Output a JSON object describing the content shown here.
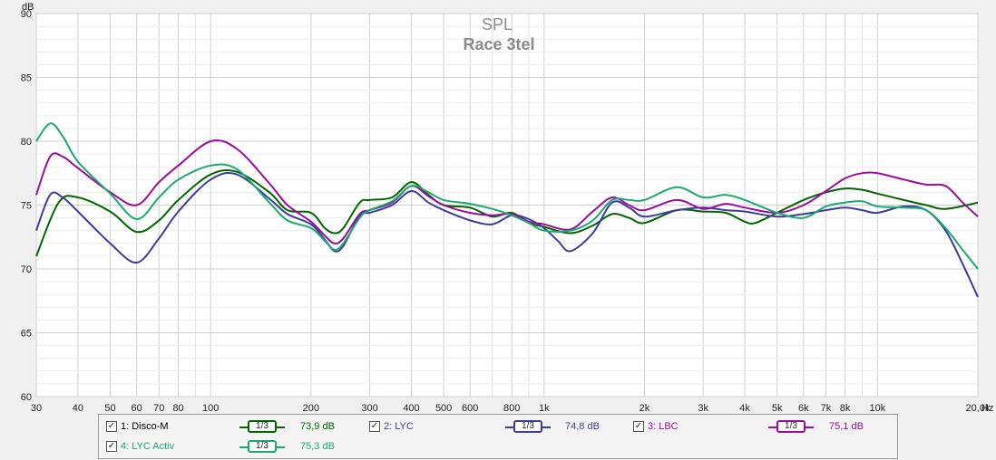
{
  "chart_data": {
    "type": "line",
    "title": "SPL",
    "subtitle": "Race 3tel",
    "ylabel": "dB",
    "xlabel": "Hz",
    "xscale": "log",
    "xlim": [
      30,
      20000
    ],
    "ylim": [
      60,
      90
    ],
    "grid": true,
    "y_ticks": [
      60,
      65,
      70,
      75,
      80,
      85,
      90
    ],
    "x_ticks": [
      {
        "v": 30,
        "l": "30"
      },
      {
        "v": 40,
        "l": "40"
      },
      {
        "v": 50,
        "l": "50"
      },
      {
        "v": 60,
        "l": "60"
      },
      {
        "v": 70,
        "l": "70"
      },
      {
        "v": 80,
        "l": "80"
      },
      {
        "v": 100,
        "l": "100"
      },
      {
        "v": 200,
        "l": "200"
      },
      {
        "v": 300,
        "l": "300"
      },
      {
        "v": 400,
        "l": "400"
      },
      {
        "v": 500,
        "l": "500"
      },
      {
        "v": 600,
        "l": "600"
      },
      {
        "v": 800,
        "l": "800"
      },
      {
        "v": 1000,
        "l": "1k"
      },
      {
        "v": 2000,
        "l": "2k"
      },
      {
        "v": 3000,
        "l": "3k"
      },
      {
        "v": 4000,
        "l": "4k"
      },
      {
        "v": 5000,
        "l": "5k"
      },
      {
        "v": 6000,
        "l": "6k"
      },
      {
        "v": 7000,
        "l": "7k"
      },
      {
        "v": 8000,
        "l": "8k"
      },
      {
        "v": 10000,
        "l": "10k"
      },
      {
        "v": 20000,
        "l": "20,0k"
      }
    ],
    "series": [
      {
        "name": "1: Disco-M",
        "color": "#006600",
        "smoothing": "1/3",
        "level": "73,9 dB",
        "x": [
          30,
          35,
          40,
          50,
          60,
          70,
          80,
          100,
          120,
          150,
          170,
          200,
          220,
          235,
          250,
          280,
          300,
          350,
          400,
          450,
          500,
          600,
          700,
          800,
          900,
          1000,
          1200,
          1400,
          1600,
          1800,
          2000,
          2500,
          3000,
          3500,
          4000,
          4300,
          5000,
          6000,
          7000,
          8000,
          9000,
          10000,
          12000,
          14000,
          16000,
          20000
        ],
        "y": [
          71,
          75.2,
          75.6,
          74.5,
          72.9,
          73.8,
          75.4,
          77.4,
          77.6,
          76,
          74.6,
          74.4,
          73.2,
          72.8,
          73.2,
          75.2,
          75.4,
          75.6,
          76.8,
          75.8,
          75,
          74.8,
          74.1,
          74.4,
          73.6,
          73.3,
          72.8,
          73.4,
          74.3,
          74,
          73.6,
          74.6,
          74.5,
          74.4,
          73.7,
          73.6,
          74.4,
          75.4,
          76,
          76.3,
          76.2,
          75.9,
          75.4,
          75,
          74.7,
          75.2
        ]
      },
      {
        "name": "2: LYC",
        "color": "#3c3c9c",
        "smoothing": "1/3",
        "level": "74,8 dB",
        "x": [
          30,
          33,
          36,
          40,
          50,
          60,
          70,
          80,
          100,
          120,
          150,
          170,
          200,
          220,
          235,
          250,
          280,
          300,
          350,
          400,
          450,
          500,
          600,
          700,
          800,
          900,
          1000,
          1100,
          1200,
          1400,
          1600,
          1800,
          2000,
          2500,
          3000,
          3500,
          4000,
          5000,
          6000,
          7000,
          8000,
          9000,
          10000,
          12000,
          14000,
          16000,
          18000,
          20000
        ],
        "y": [
          73,
          75.8,
          75.6,
          74.5,
          72,
          70.5,
          72.4,
          74.5,
          77,
          77.4,
          75.5,
          74.3,
          73.5,
          72.3,
          71.4,
          71.8,
          74.2,
          74.4,
          75,
          76.1,
          75.2,
          74.6,
          73.8,
          73.5,
          74.2,
          73.9,
          73.2,
          72.2,
          71.4,
          72.8,
          75.2,
          74.8,
          74.1,
          74.6,
          74.8,
          74.6,
          74.5,
          74.1,
          74.3,
          74.6,
          74.8,
          74.6,
          74.4,
          74.9,
          74.6,
          73,
          70.4,
          67.8
        ]
      },
      {
        "name": "3: LBC",
        "color": "#9c0c9c",
        "smoothing": "1/3",
        "level": "75,1 dB",
        "x": [
          30,
          33,
          36,
          40,
          50,
          60,
          70,
          80,
          100,
          120,
          150,
          170,
          200,
          220,
          235,
          250,
          280,
          300,
          350,
          400,
          450,
          500,
          600,
          700,
          800,
          900,
          1000,
          1200,
          1400,
          1600,
          1800,
          2000,
          2500,
          3000,
          3500,
          4000,
          5000,
          6000,
          7000,
          8000,
          9000,
          10000,
          12000,
          14000,
          16000,
          18000,
          20000
        ],
        "y": [
          75.8,
          78.8,
          78.8,
          77.9,
          76,
          75,
          76.8,
          78.1,
          80,
          79.4,
          76.7,
          75,
          73.7,
          72.6,
          72,
          72.4,
          74.3,
          74.6,
          75.2,
          76.5,
          75.7,
          75,
          74.4,
          74.2,
          74.3,
          73.7,
          73.5,
          73.1,
          74.5,
          75.6,
          75,
          74.6,
          75.4,
          74.7,
          75.1,
          74.8,
          74.4,
          75,
          76.1,
          77.1,
          77.5,
          77.5,
          77,
          76.6,
          76.5,
          75.2,
          74.1
        ]
      },
      {
        "name": "4: LYC Activ",
        "color": "#1aaa70",
        "smoothing": "1/3",
        "level": "75,3 dB",
        "x": [
          30,
          33,
          36,
          40,
          50,
          60,
          70,
          80,
          100,
          120,
          150,
          170,
          200,
          220,
          235,
          250,
          280,
          300,
          350,
          400,
          450,
          500,
          600,
          700,
          800,
          900,
          1000,
          1200,
          1400,
          1600,
          1800,
          2000,
          2500,
          3000,
          3500,
          4000,
          5000,
          6000,
          7000,
          8000,
          9000,
          10000,
          12000,
          14000,
          16000,
          18000,
          20000
        ],
        "y": [
          80,
          81.4,
          80.4,
          78.4,
          75.9,
          73.9,
          75.6,
          77,
          78.1,
          77.8,
          75.2,
          73.8,
          73.2,
          72.2,
          71.5,
          72,
          74,
          74.6,
          75.3,
          76.5,
          76,
          75.4,
          75.1,
          74.7,
          74.2,
          73.6,
          73,
          73,
          73.8,
          75.4,
          75.4,
          75.4,
          76.4,
          75.6,
          75.8,
          75.4,
          74.4,
          74,
          74.9,
          75.2,
          75.3,
          74.9,
          74.8,
          74.6,
          73.2,
          71.5,
          70
        ]
      }
    ]
  },
  "legend": {
    "entries": [
      {
        "label": "1: Disco-M",
        "smoothing": "1/3",
        "level": "73,9 dB",
        "color": "#006600"
      },
      {
        "label": "2: LYC",
        "smoothing": "1/3",
        "level": "74,8 dB",
        "color": "#3c3c9c"
      },
      {
        "label": "3: LBC",
        "smoothing": "1/3",
        "level": "75,1 dB",
        "color": "#9c0c9c"
      },
      {
        "label": "4: LYC Activ",
        "smoothing": "1/3",
        "level": "75,3 dB",
        "color": "#1aaa70"
      }
    ]
  }
}
